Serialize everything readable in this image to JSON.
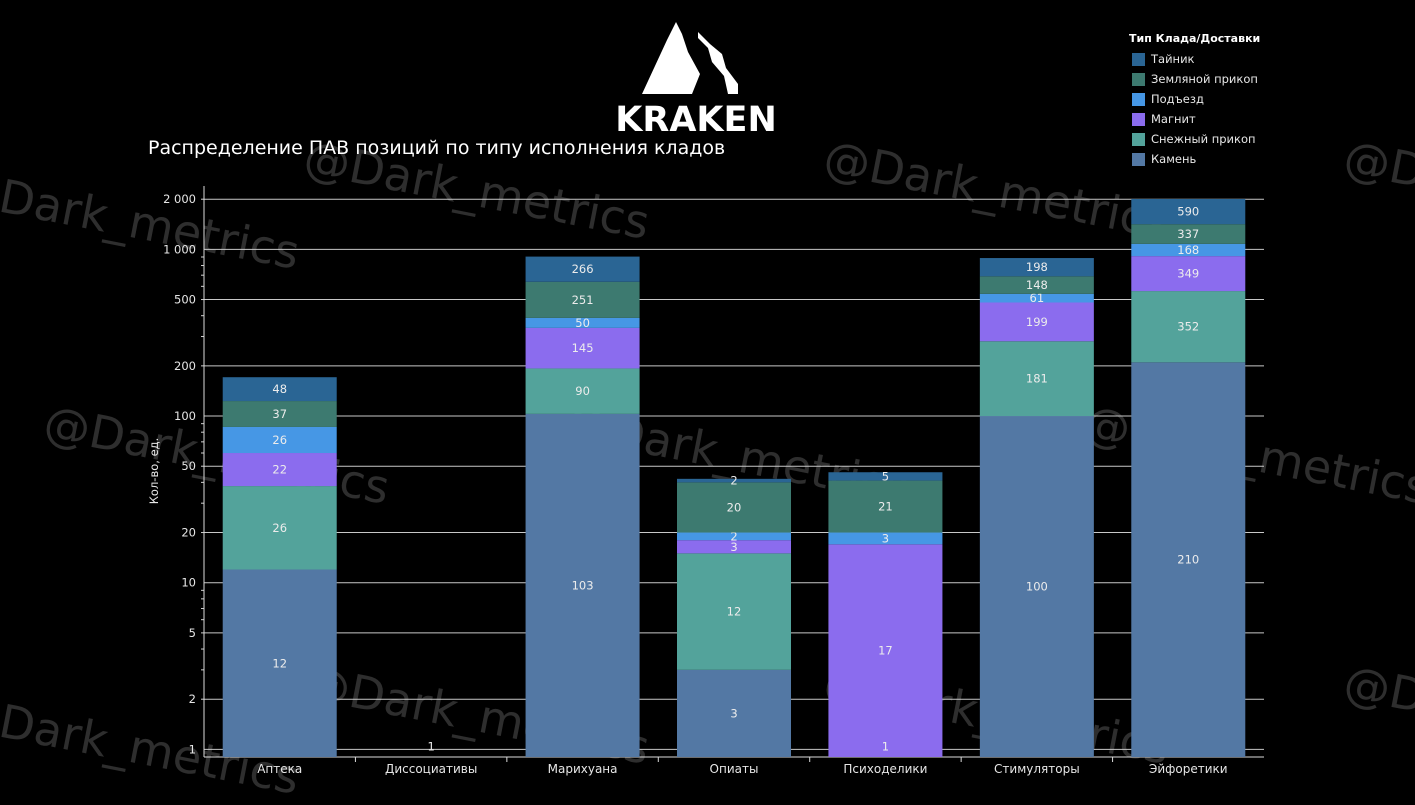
{
  "logo_text": "KRAKEN",
  "watermark": "@Dark_metrics",
  "chart_data": {
    "type": "bar",
    "stacked": true,
    "yscale": "log",
    "title": "Распределение ПАВ позиций по типу исполнения кладов",
    "xlabel": "",
    "ylabel": "Кол-во, ед.",
    "ylim": [
      0.9,
      2400
    ],
    "yticks": [
      1,
      2,
      5,
      10,
      20,
      50,
      100,
      200,
      500,
      1000,
      2000
    ],
    "ytick_labels": [
      "1",
      "2",
      "5",
      "10",
      "20",
      "50",
      "100",
      "200",
      "500",
      "1 000",
      "2 000"
    ],
    "grid": true,
    "legend_title": "Тип Клада/Доставки",
    "legend_position": "top-right",
    "categories": [
      "Аптека",
      "Диссоциативы",
      "Марихуана",
      "Опиаты",
      "Психоделики",
      "Стимуляторы",
      "Эйфоретики"
    ],
    "series": [
      {
        "name": "Камень",
        "color": "#5378a4",
        "values": [
          12,
          0,
          103,
          3,
          0,
          100,
          210
        ]
      },
      {
        "name": "Снежный прикоп",
        "color": "#53a39b",
        "values": [
          26,
          0,
          90,
          12,
          0,
          181,
          352
        ]
      },
      {
        "name": "Магнит",
        "color": "#8b6cee",
        "values": [
          22,
          0,
          145,
          3,
          17,
          199,
          349
        ]
      },
      {
        "name": "Подъезд",
        "color": "#4697e5",
        "values": [
          26,
          0,
          50,
          2,
          3,
          61,
          168
        ]
      },
      {
        "name": "Земляной прикоп",
        "color": "#3d7a70",
        "values": [
          37,
          0,
          251,
          20,
          21,
          148,
          337
        ]
      },
      {
        "name": "Тайник",
        "color": "#2a6594",
        "values": [
          48,
          0,
          266,
          2,
          5,
          198,
          590
        ]
      }
    ],
    "single_points": [
      {
        "category": "Диссоциативы",
        "value": 1
      },
      {
        "category": "Психоделики",
        "value": 1
      }
    ]
  },
  "legend_order": [
    "Тайник",
    "Земляной прикоп",
    "Подъезд",
    "Магнит",
    "Снежный прикоп",
    "Камень"
  ]
}
